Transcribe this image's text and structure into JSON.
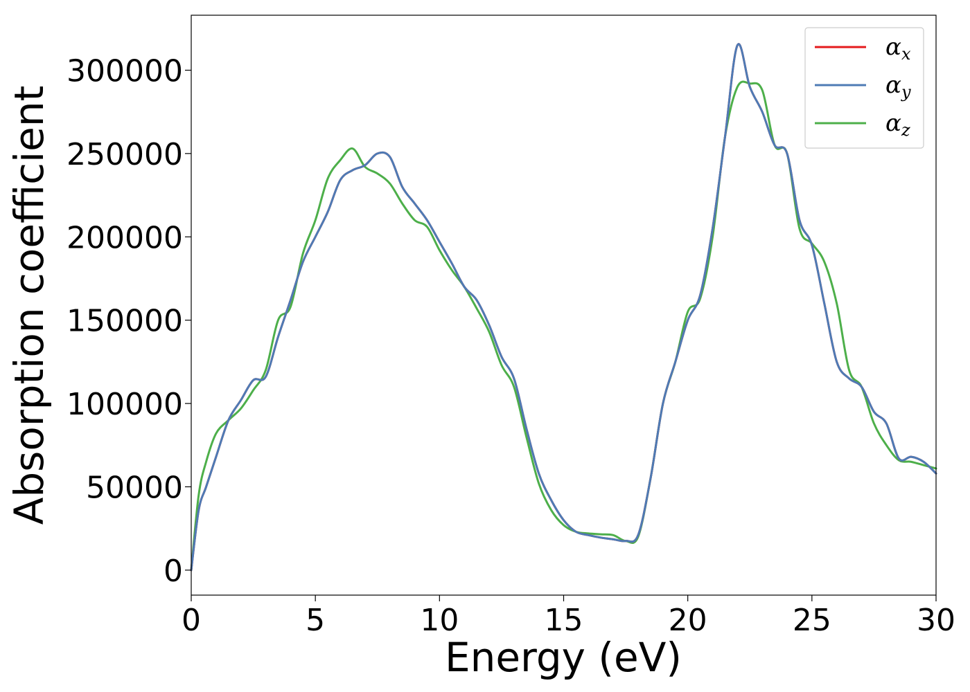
{
  "chart_data": {
    "type": "line",
    "xlabel": "Energy (eV)",
    "ylabel": "Absorption coefficient",
    "xlim": [
      0,
      30
    ],
    "ylim": [
      -15000,
      333000
    ],
    "xticks": [
      0,
      5,
      10,
      15,
      20,
      25,
      30
    ],
    "yticks": [
      0,
      50000,
      100000,
      150000,
      200000,
      250000,
      300000
    ],
    "grid": false,
    "legend_position": "top-right",
    "x": [
      0,
      0.3,
      0.6,
      1,
      1.5,
      2,
      2.5,
      3,
      3.5,
      4,
      4.5,
      5,
      5.5,
      6,
      6.5,
      7,
      7.5,
      8,
      8.5,
      9,
      9.5,
      10,
      10.5,
      11,
      11.5,
      12,
      12.5,
      13,
      13.5,
      14,
      14.5,
      15,
      15.5,
      16,
      16.5,
      17,
      17.5,
      18,
      18.5,
      19,
      19.5,
      20,
      20.5,
      21,
      21.5,
      22,
      22.5,
      23,
      23.5,
      24,
      24.5,
      25,
      25.5,
      26,
      26.5,
      27,
      27.5,
      28,
      28.5,
      29,
      29.5,
      30
    ],
    "series": [
      {
        "name": "α_x",
        "symbol": "α",
        "subscript": "x",
        "color": "#e41a1c",
        "values": [
          0,
          36000,
          50000,
          68000,
          90000,
          102000,
          114000,
          116000,
          140000,
          162000,
          185000,
          200000,
          215000,
          234000,
          240000,
          243000,
          250000,
          248000,
          230000,
          220000,
          210000,
          197000,
          184000,
          170000,
          162000,
          147000,
          128000,
          115000,
          85000,
          58000,
          42000,
          30000,
          23000,
          21000,
          19500,
          18500,
          17500,
          21000,
          55000,
          100000,
          125000,
          150000,
          165000,
          205000,
          260000,
          315000,
          290000,
          275000,
          255000,
          250000,
          210000,
          195000,
          160000,
          125000,
          115000,
          110000,
          95000,
          88000,
          67000,
          68000,
          65000,
          58000
        ]
      },
      {
        "name": "α_y",
        "symbol": "α",
        "subscript": "y",
        "color": "#4e7bb5",
        "values": [
          0,
          36000,
          50000,
          68000,
          90000,
          102000,
          114000,
          116000,
          140000,
          162000,
          185000,
          200000,
          215000,
          234000,
          240000,
          243000,
          250000,
          248000,
          230000,
          220000,
          210000,
          197000,
          184000,
          170000,
          162000,
          147000,
          128000,
          115000,
          85000,
          58000,
          42000,
          30000,
          23000,
          21000,
          19500,
          18500,
          17500,
          21000,
          55000,
          100000,
          125000,
          150000,
          165000,
          205000,
          260000,
          315000,
          290000,
          275000,
          255000,
          250000,
          210000,
          195000,
          160000,
          125000,
          115000,
          110000,
          95000,
          88000,
          67000,
          68000,
          65000,
          58000
        ]
      },
      {
        "name": "α_z",
        "symbol": "α",
        "subscript": "z",
        "color": "#4daf4a",
        "values": [
          0,
          45000,
          65000,
          82000,
          90000,
          97000,
          108000,
          120000,
          150000,
          158000,
          190000,
          210000,
          235000,
          246000,
          253000,
          242000,
          238000,
          232000,
          220000,
          210000,
          206000,
          192000,
          180000,
          170000,
          157000,
          143000,
          123000,
          110000,
          80000,
          52000,
          36000,
          27000,
          23000,
          22000,
          21500,
          21000,
          17500,
          20000,
          55000,
          100000,
          125000,
          155000,
          163000,
          200000,
          260000,
          290000,
          292000,
          288000,
          255000,
          250000,
          205000,
          196000,
          185000,
          160000,
          120000,
          110000,
          88000,
          75000,
          66000,
          65000,
          63000,
          61000
        ]
      }
    ]
  }
}
